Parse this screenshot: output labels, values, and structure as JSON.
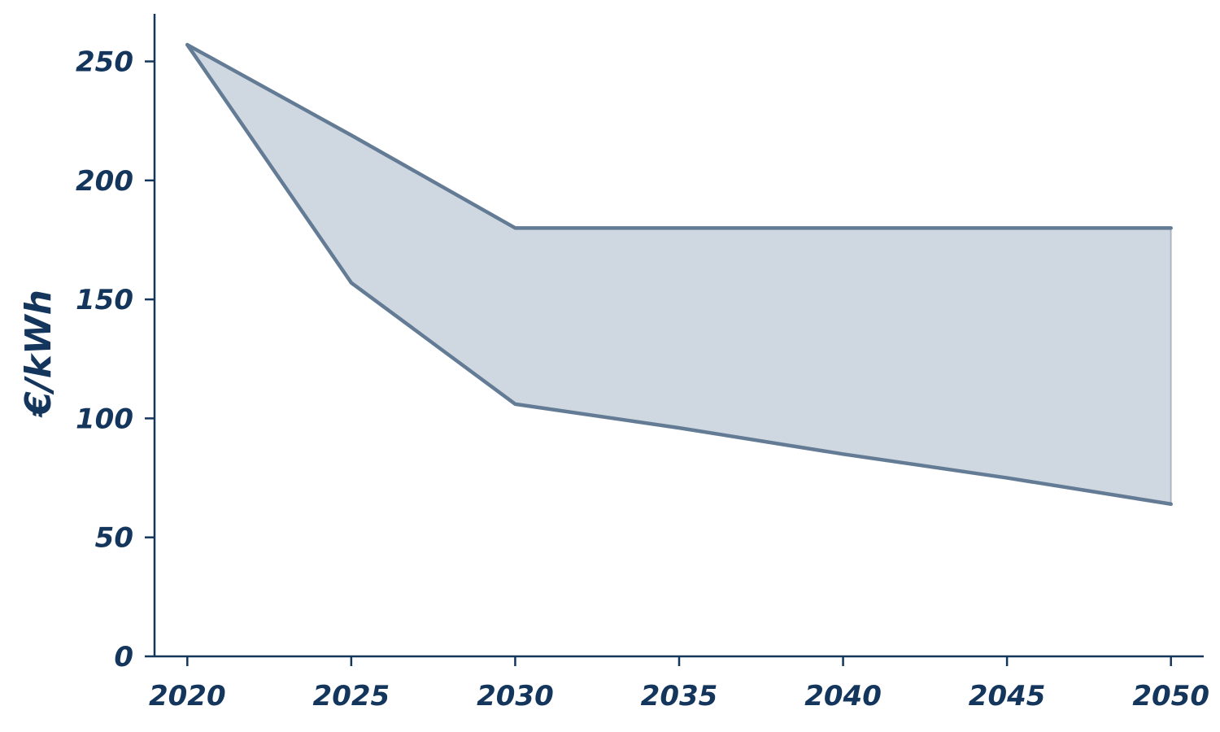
{
  "chart_data": {
    "type": "area",
    "title": "",
    "xlabel": "",
    "ylabel": "€/kWh",
    "x": [
      2020,
      2025,
      2030,
      2035,
      2040,
      2045,
      2050
    ],
    "series": [
      {
        "values": [
          257,
          219,
          180,
          180,
          180,
          180,
          180
        ]
      },
      {
        "values": [
          257,
          157,
          106,
          96,
          85,
          75,
          64
        ]
      }
    ],
    "xlim": [
      2019,
      2051
    ],
    "ylim": [
      0,
      270
    ],
    "x_ticks": [
      "2020",
      "2025",
      "2030",
      "2035",
      "2040",
      "2045",
      "2050"
    ],
    "y_ticks": [
      "0",
      "50",
      "100",
      "150",
      "200",
      "250"
    ],
    "grid": false,
    "legend": "none",
    "colors": {
      "text": "#14365c",
      "axis": "#14365c",
      "band_fill": "#cfd8e0",
      "band_line": "#637b94"
    }
  }
}
